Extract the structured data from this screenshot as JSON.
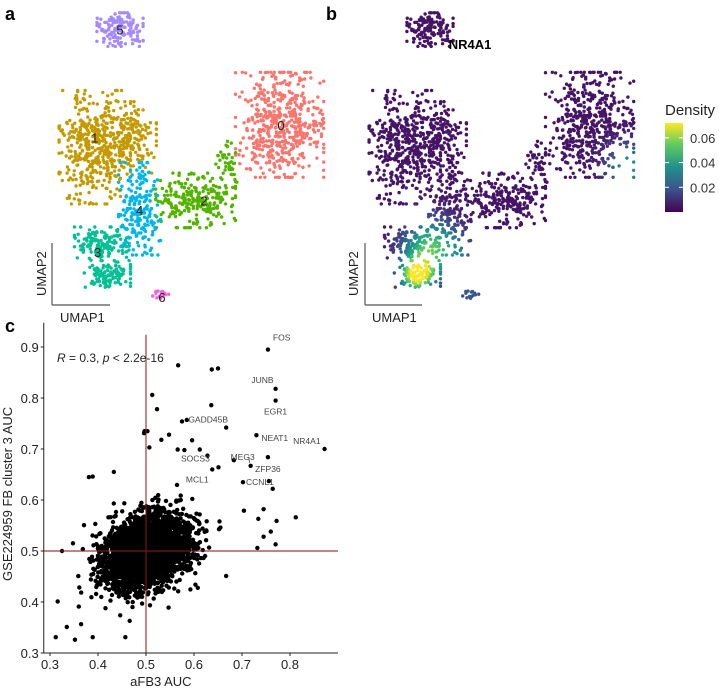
{
  "panels": {
    "a": "a",
    "b": "b",
    "c": "c"
  },
  "umap": {
    "xlabel": "UMAP1",
    "ylabel": "UMAP2",
    "clusters": [
      {
        "id": "0",
        "color": "#F8766D",
        "components": [
          {
            "u": 6.4,
            "v": 1.8,
            "su": 2.1,
            "sv": 2.5,
            "n": 520
          }
        ]
      },
      {
        "id": "1",
        "color": "#C49A00",
        "components": [
          {
            "u": -6.8,
            "v": 0.2,
            "su": 1.7,
            "sv": 2.7,
            "n": 420
          },
          {
            "u": -4.2,
            "v": 0.9,
            "su": 1.2,
            "sv": 1.7,
            "n": 170
          }
        ]
      },
      {
        "id": "2",
        "color": "#53B400",
        "components": [
          {
            "u": 0.4,
            "v": -3.6,
            "su": 1.9,
            "sv": 1.3,
            "n": 260
          },
          {
            "u": 2.6,
            "v": -0.8,
            "su": 0.5,
            "sv": 1.0,
            "n": 40
          }
        ]
      },
      {
        "id": "3",
        "color": "#00C094",
        "components": [
          {
            "u": -6.3,
            "v": -6.7,
            "su": 1.3,
            "sv": 0.8,
            "n": 140
          },
          {
            "u": -5.9,
            "v": -8.9,
            "su": 1.1,
            "sv": 0.6,
            "n": 110
          }
        ]
      },
      {
        "id": "4",
        "color": "#00B6EB",
        "components": [
          {
            "u": -3.6,
            "v": -4.2,
            "su": 1.0,
            "sv": 2.2,
            "n": 210
          }
        ]
      },
      {
        "id": "5",
        "color": "#A58AFF",
        "components": [
          {
            "u": -5.0,
            "v": 8.6,
            "su": 1.1,
            "sv": 0.8,
            "n": 140
          }
        ]
      },
      {
        "id": "6",
        "color": "#FB61D7",
        "components": [
          {
            "u": -2.1,
            "v": -10.3,
            "su": 0.4,
            "sv": 0.2,
            "n": 14
          }
        ]
      }
    ],
    "label_positions": [
      {
        "id": "0",
        "u": 6.5,
        "v": 1.8
      },
      {
        "id": "1",
        "u": -6.8,
        "v": 0.9
      },
      {
        "id": "2",
        "u": 1.0,
        "v": -3.6
      },
      {
        "id": "3",
        "u": -6.6,
        "v": -7.3
      },
      {
        "id": "4",
        "u": -3.6,
        "v": -4.3
      },
      {
        "id": "5",
        "u": -5.0,
        "v": 8.6
      },
      {
        "id": "6",
        "u": -2.0,
        "v": -10.5
      }
    ]
  },
  "density_plot": {
    "title": "NR4A1",
    "legend_title": "Density",
    "legend_ticks": [
      "0.02",
      "0.04",
      "0.06"
    ],
    "legend_tick_values": [
      0.02,
      0.04,
      0.06
    ],
    "range": [
      0.0,
      0.072
    ],
    "base": 0.004,
    "hotspots": [
      {
        "u": -5.9,
        "v": -8.9,
        "peak": 0.068,
        "sigma": 0.9
      },
      {
        "u": -5.0,
        "v": -6.8,
        "peak": 0.045,
        "sigma": 1.3
      },
      {
        "u": 9.3,
        "v": -1.2,
        "peak": 0.035,
        "sigma": 1.1
      },
      {
        "u": -2.1,
        "v": -10.3,
        "peak": 0.016,
        "sigma": 1.0
      },
      {
        "u": -3.0,
        "v": -7.5,
        "peak": 0.018,
        "sigma": 1.0
      }
    ]
  },
  "chart_data": {
    "type": "scatter",
    "xlabel": "aFB3 AUC",
    "ylabel": "GSE224959 FB cluster 3 AUC",
    "xlim": [
      0.287,
      0.9
    ],
    "ylim": [
      0.3,
      0.924
    ],
    "xticks": [
      "0.3",
      "0.4",
      "0.5",
      "0.6",
      "0.7",
      "0.8"
    ],
    "xtick_values": [
      0.3,
      0.4,
      0.5,
      0.6,
      0.7,
      0.8
    ],
    "yticks": [
      "0.3",
      "0.4",
      "0.5",
      "0.6",
      "0.7",
      "0.8",
      "0.9"
    ],
    "ytick_values": [
      0.3,
      0.4,
      0.5,
      0.6,
      0.7,
      0.8,
      0.9
    ],
    "reference_lines": {
      "x": 0.5,
      "y": 0.5,
      "color": "#8B1A1A"
    },
    "annotation": {
      "R": "R",
      "r_text": " = 0.3, ",
      "p": "p",
      "p_text": " < 2.2e-16"
    },
    "bulk": {
      "n": 3200,
      "x_mean": 0.5,
      "x_sd": 0.045,
      "y_mean": 0.5,
      "y_sd": 0.034,
      "slope": 0.25
    },
    "labeled_points": [
      {
        "gene": "FOS",
        "x": 0.754,
        "y": 0.895
      },
      {
        "gene": "JUNB",
        "x": 0.77,
        "y": 0.818
      },
      {
        "gene": "EGR1",
        "x": 0.77,
        "y": 0.795
      },
      {
        "gene": "GADD45B",
        "x": 0.667,
        "y": 0.742
      },
      {
        "gene": "NEAT1",
        "x": 0.73,
        "y": 0.727
      },
      {
        "gene": "NR4A1",
        "x": 0.872,
        "y": 0.7
      },
      {
        "gene": "ZFP36",
        "x": 0.754,
        "y": 0.684
      },
      {
        "gene": "SOCS3",
        "x": 0.628,
        "y": 0.687
      },
      {
        "gene": "MEG3",
        "x": 0.718,
        "y": 0.667
      },
      {
        "gene": "MCL1",
        "x": 0.638,
        "y": 0.66
      },
      {
        "gene": "CCNL1",
        "x": 0.702,
        "y": 0.635
      }
    ],
    "other_outliers": [
      [
        0.567,
        0.864
      ],
      [
        0.637,
        0.856
      ],
      [
        0.65,
        0.858
      ],
      [
        0.513,
        0.806
      ],
      [
        0.523,
        0.778
      ],
      [
        0.636,
        0.786
      ],
      [
        0.575,
        0.754
      ],
      [
        0.585,
        0.757
      ],
      [
        0.497,
        0.735
      ],
      [
        0.503,
        0.735
      ],
      [
        0.496,
        0.731
      ],
      [
        0.532,
        0.718
      ],
      [
        0.548,
        0.728
      ],
      [
        0.596,
        0.717
      ],
      [
        0.507,
        0.703
      ],
      [
        0.566,
        0.699
      ],
      [
        0.58,
        0.698
      ],
      [
        0.612,
        0.699
      ],
      [
        0.683,
        0.678
      ],
      [
        0.651,
        0.664
      ],
      [
        0.764,
        0.622
      ],
      [
        0.812,
        0.566
      ],
      [
        0.772,
        0.559
      ],
      [
        0.77,
        0.513
      ],
      [
        0.732,
        0.506
      ],
      [
        0.667,
        0.451
      ],
      [
        0.325,
        0.5
      ],
      [
        0.312,
        0.331
      ],
      [
        0.352,
        0.326
      ],
      [
        0.457,
        0.331
      ],
      [
        0.389,
        0.331
      ],
      [
        0.316,
        0.401
      ],
      [
        0.335,
        0.351
      ],
      [
        0.466,
        0.363
      ],
      [
        0.547,
        0.389
      ],
      [
        0.603,
        0.434
      ],
      [
        0.567,
        0.421
      ],
      [
        0.389,
        0.646
      ],
      [
        0.381,
        0.645
      ],
      [
        0.433,
        0.655
      ],
      [
        0.704,
        0.579
      ],
      [
        0.745,
        0.582
      ],
      [
        0.734,
        0.563
      ],
      [
        0.76,
        0.538
      ],
      [
        0.745,
        0.528
      ],
      [
        0.756,
        0.637
      ]
    ]
  }
}
